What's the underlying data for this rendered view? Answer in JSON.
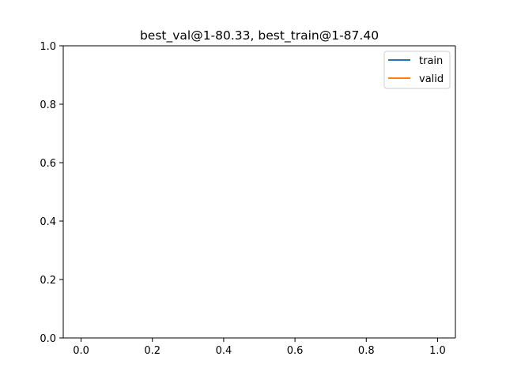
{
  "chart_data": {
    "type": "line",
    "title": "best_val@1-80.33, best_train@1-87.40",
    "xlabel": "",
    "ylabel": "",
    "xlim": [
      -0.05,
      1.05
    ],
    "ylim": [
      0,
      1
    ],
    "x_ticks": [
      "0.0",
      "0.2",
      "0.4",
      "0.6",
      "0.8",
      "1.0"
    ],
    "x_tick_values": [
      0,
      0.2,
      0.4,
      0.6,
      0.8,
      1.0
    ],
    "y_ticks": [
      "0.0",
      "0.2",
      "0.4",
      "0.6",
      "0.8",
      "1.0"
    ],
    "y_tick_values": [
      0,
      0.2,
      0.4,
      0.6,
      0.8,
      1.0
    ],
    "grid": false,
    "legend_position": "top-right",
    "series": [
      {
        "name": "train",
        "color": "#1f77b4",
        "x": [],
        "y": []
      },
      {
        "name": "valid",
        "color": "#ff7f0e",
        "x": [],
        "y": []
      }
    ]
  }
}
